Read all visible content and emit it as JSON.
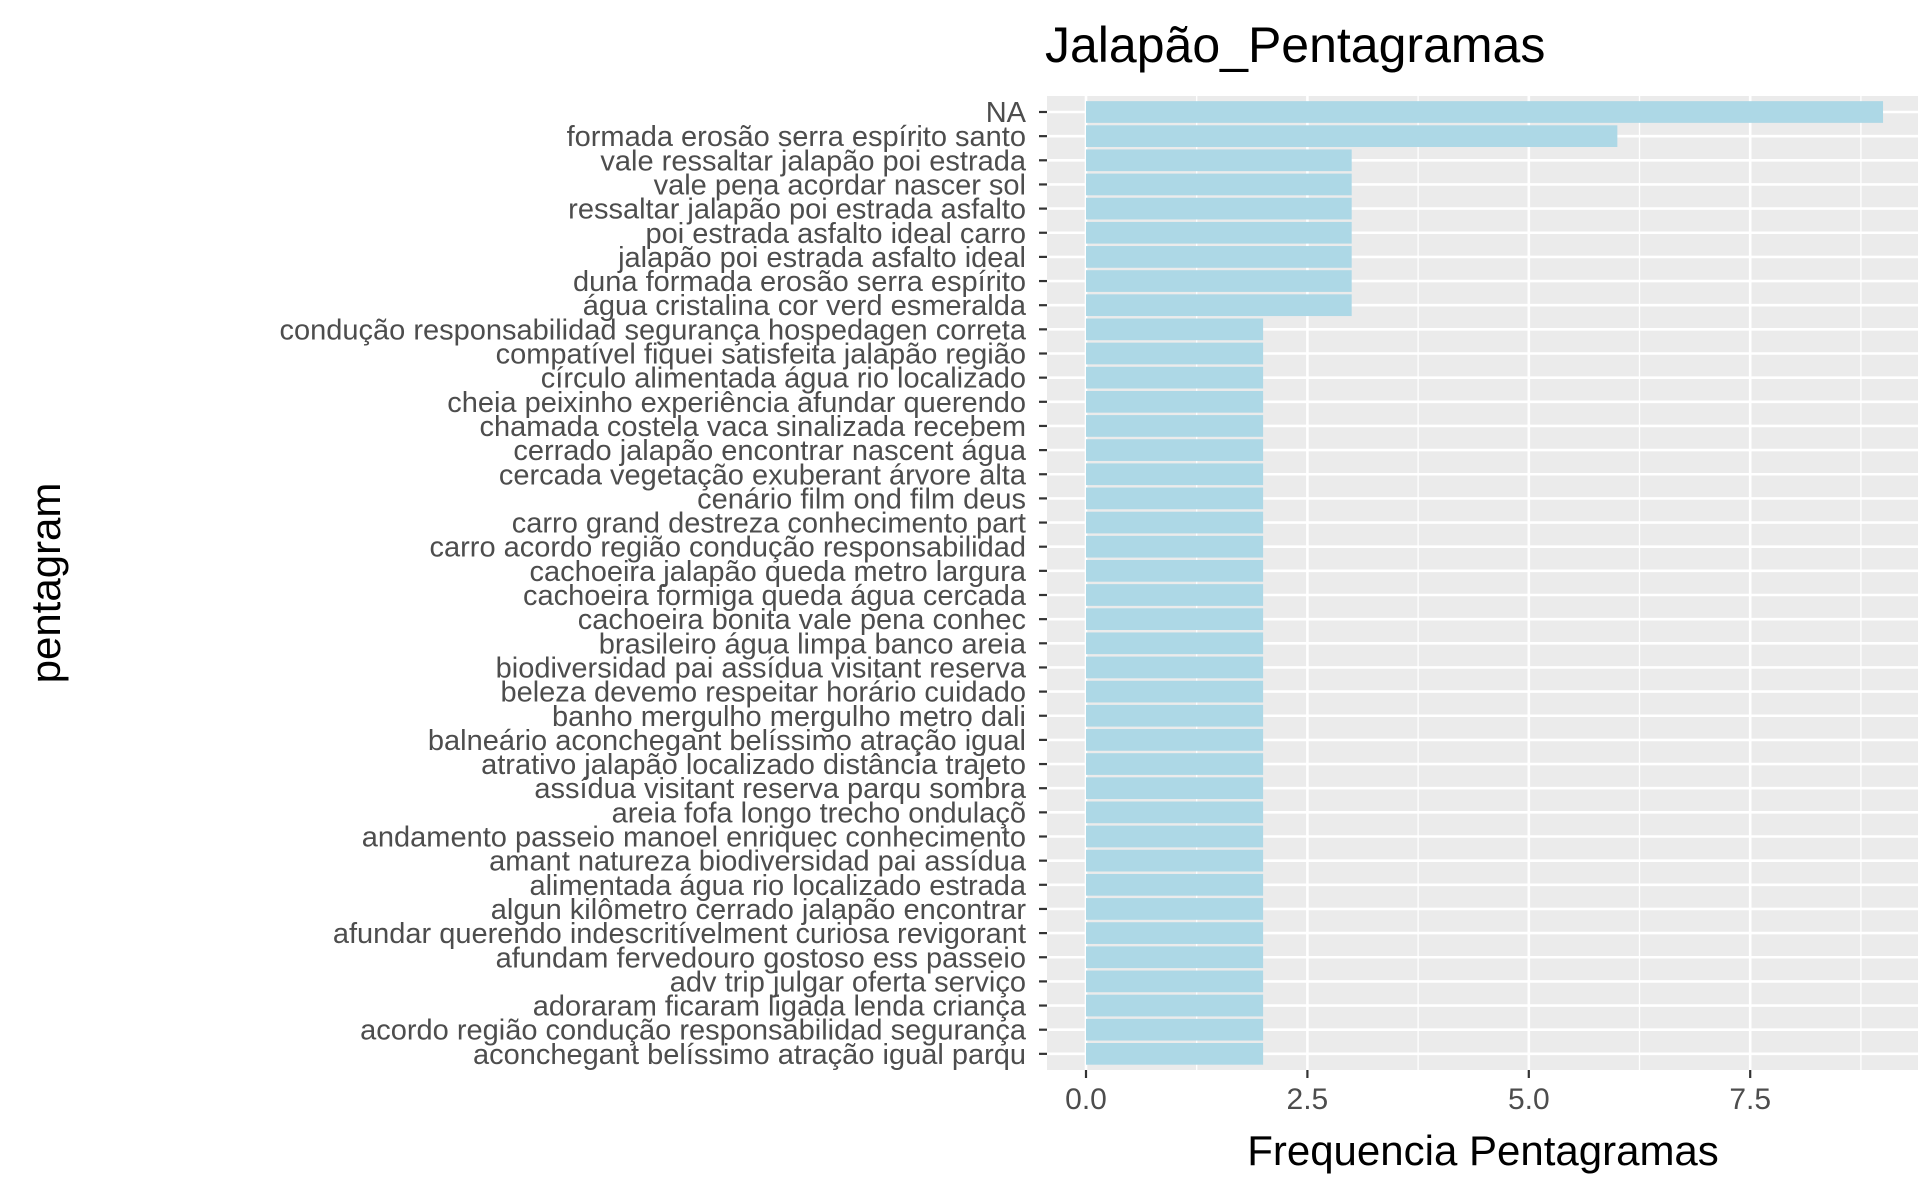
{
  "chart_data": {
    "type": "bar",
    "orientation": "horizontal",
    "title": "Jalapão_Pentagramas",
    "xlabel": "Frequencia Pentagramas",
    "ylabel": "pentagram",
    "xlim": [
      0,
      9
    ],
    "x_ticks": [
      "0.0",
      "2.5",
      "5.0",
      "7.5"
    ],
    "grid": true,
    "bar_color": "#add8e6",
    "panel_background": "#ebebeb",
    "categories": [
      "NA",
      "formada erosão serra espírito santo",
      "vale ressaltar jalapão poi estrada",
      "vale pena acordar nascer sol",
      "ressaltar jalapão poi estrada asfalto",
      "poi estrada asfalto ideal carro",
      "jalapão poi estrada asfalto ideal",
      "duna formada erosão serra espírito",
      "água cristalina cor verd esmeralda",
      "condução responsabilidad segurança hospedagen correta",
      "compatível fiquei satisfeita jalapão região",
      "círculo alimentada água rio localizado",
      "cheia peixinho experiência afundar querendo",
      "chamada costela vaca sinalizada recebem",
      "cerrado jalapão encontrar nascent água",
      "cercada vegetação exuberant árvore alta",
      "cenário film ond film deus",
      "carro grand destreza conhecimento part",
      "carro acordo região condução responsabilidad",
      "cachoeira jalapão queda metro largura",
      "cachoeira formiga queda água cercada",
      "cachoeira bonita vale pena conhec",
      "brasileiro água limpa banco areia",
      "biodiversidad pai assídua visitant reserva",
      "beleza devemo respeitar horário cuidado",
      "banho mergulho mergulho metro dali",
      "balneário aconchegant belíssimo atração igual",
      "atrativo jalapão localizado distância trajeto",
      "assídua visitant reserva parqu sombra",
      "areia fofa longo trecho ondulaçõ",
      "andamento passeio manoel enriquec conhecimento",
      "amant natureza biodiversidad pai assídua",
      "alimentada água rio localizado estrada",
      "algun kilômetro cerrado jalapão encontrar",
      "afundar querendo indescritívelment curiosa revigorant",
      "afundam fervedouro gostoso ess passeio",
      "adv trip julgar oferta serviço",
      "adoraram ficaram ligada lenda criança",
      "acordo região condução responsabilidad segurança",
      "aconchegant belíssimo atração igual parqu"
    ],
    "values": [
      9,
      6,
      3,
      3,
      3,
      3,
      3,
      3,
      3,
      2,
      2,
      2,
      2,
      2,
      2,
      2,
      2,
      2,
      2,
      2,
      2,
      2,
      2,
      2,
      2,
      2,
      2,
      2,
      2,
      2,
      2,
      2,
      2,
      2,
      2,
      2,
      2,
      2,
      2,
      2
    ]
  }
}
